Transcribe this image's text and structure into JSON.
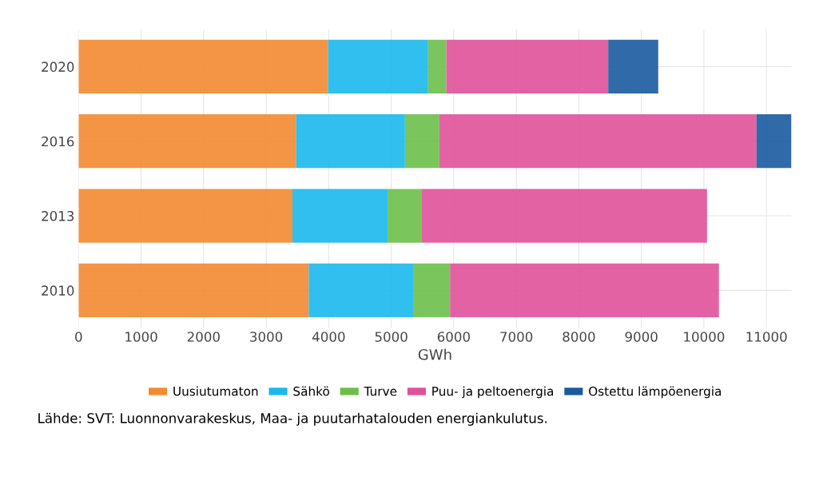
{
  "chart_data": {
    "type": "bar",
    "orientation": "horizontal",
    "stacked": true,
    "xlabel": "GWh",
    "categories": [
      "2020",
      "2016",
      "2013",
      "2010"
    ],
    "series": [
      {
        "name": "Uusiutumaton",
        "color": "#f28a30",
        "values": [
          3990,
          3480,
          3420,
          3680
        ]
      },
      {
        "name": "Sähkö",
        "color": "#1ab8ec",
        "values": [
          1600,
          1740,
          1520,
          1670
        ]
      },
      {
        "name": "Turve",
        "color": "#6cc04a",
        "values": [
          290,
          550,
          550,
          590
        ]
      },
      {
        "name": "Puu- ja peltoenergia",
        "color": "#e0519a",
        "values": [
          2590,
          5070,
          4560,
          4300
        ]
      },
      {
        "name": "Ostettu lämpöenergia",
        "color": "#1a5a9e",
        "values": [
          800,
          560,
          null,
          null
        ]
      }
    ],
    "xlim": [
      0,
      11400
    ],
    "xticks": [
      0,
      1000,
      2000,
      3000,
      4000,
      5000,
      6000,
      7000,
      8000,
      9000,
      10000,
      11000
    ],
    "grid": true,
    "legend": "bottom",
    "annotations": [
      "Lähde: SVT: Luonnonvarakeskus, Maa- ja puutarhatalouden energiankulutus."
    ]
  }
}
